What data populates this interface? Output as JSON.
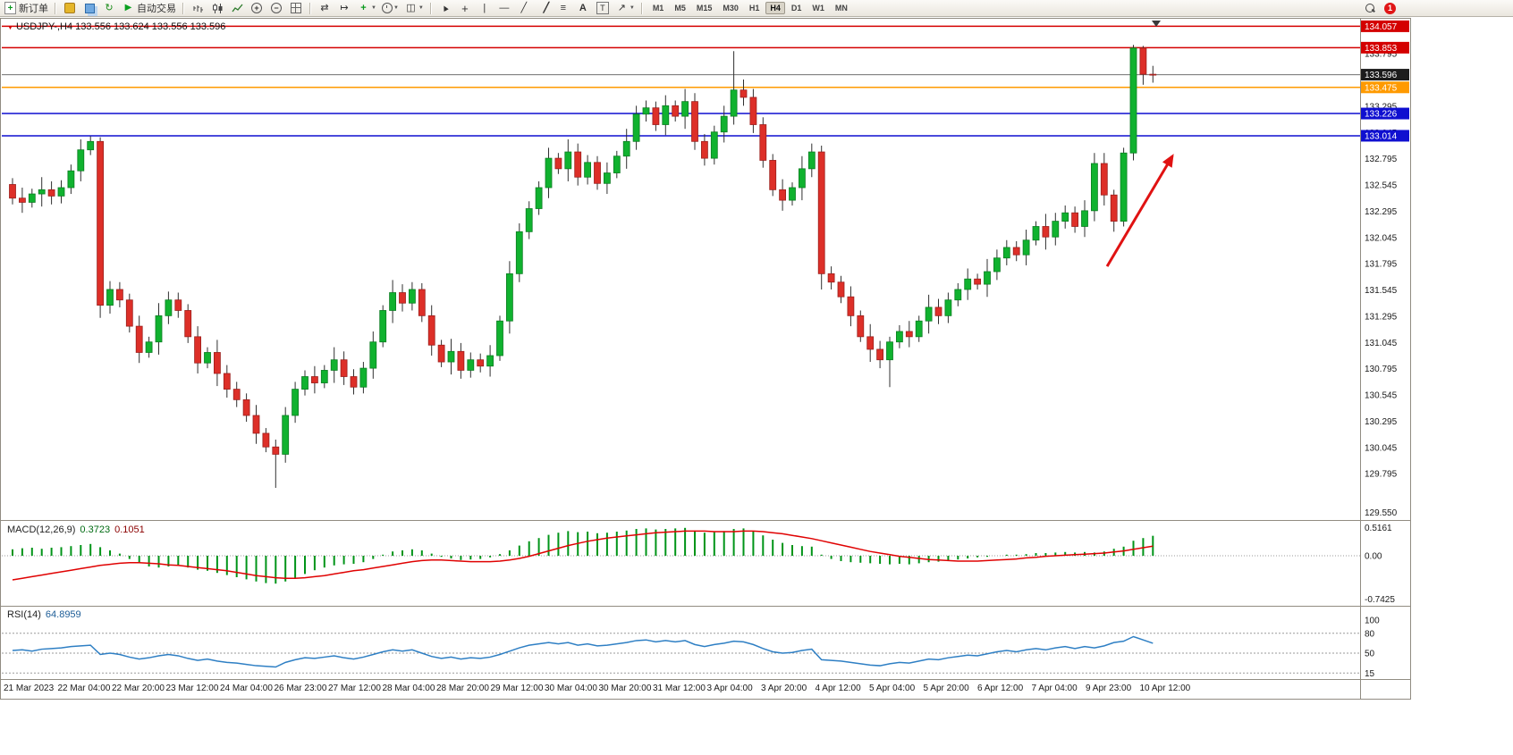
{
  "toolbar": {
    "new_order_label": "新订单",
    "autotrade_label": "自动交易",
    "timeframes": [
      "M1",
      "M5",
      "M15",
      "M30",
      "H1",
      "H4",
      "D1",
      "W1",
      "MN"
    ],
    "active_timeframe": "H4",
    "notification_count": "1",
    "icons": [
      "new-order-icon",
      "hammer-icon",
      "layers-icon",
      "refresh-icon",
      "autotrade-play-icon",
      "bar-chart-icon",
      "candlestick-chart-icon",
      "line-chart-icon",
      "zoom-in-icon",
      "zoom-out-icon",
      "tile-windows-icon",
      "auto-scroll-icon",
      "chart-shift-icon",
      "indicators-icon",
      "periods-icon",
      "templates-icon",
      "cursor-icon",
      "crosshair-icon",
      "vertical-line-icon",
      "horizontal-line-icon",
      "trendline-icon",
      "channel-icon",
      "fibonacci-icon",
      "text-icon",
      "text-label-icon",
      "arrows-icon",
      "search-icon"
    ]
  },
  "chart": {
    "symbol_period": "USDJPY-,H4",
    "ohlc_text": "133.556 133.624 133.556 133.596"
  },
  "chart_data": {
    "type": "candlestick",
    "symbol": "USDJPY-",
    "timeframe": "H4",
    "ohlc_display": {
      "open": "133.556",
      "high": "133.624",
      "low": "133.556",
      "close": "133.596"
    },
    "ylim": [
      129.37,
      134.12
    ],
    "current_price": 133.596,
    "price_axis_labels": [
      "133.795",
      "133.295",
      "133.045",
      "132.795",
      "132.545",
      "132.295",
      "132.045",
      "131.795",
      "131.545",
      "131.295",
      "131.045",
      "130.795",
      "130.545",
      "130.295",
      "130.045",
      "129.795"
    ],
    "price_axis_bottom_label": "129.550",
    "price_badges": [
      {
        "text": "134.057",
        "bg": "#d40000"
      },
      {
        "text": "133.853",
        "bg": "#d40000"
      },
      {
        "text": "133.596",
        "bg": "#1c1c1c"
      },
      {
        "text": "133.475",
        "bg": "#ff9a00"
      },
      {
        "text": "133.226",
        "bg": "#0f0fd0"
      },
      {
        "text": "133.014",
        "bg": "#0f0fd0"
      }
    ],
    "hlines": [
      {
        "price": 134.057,
        "color": "#d40000"
      },
      {
        "price": 133.853,
        "color": "#d40000"
      },
      {
        "price": 133.475,
        "color": "#ff9a00"
      },
      {
        "price": 133.226,
        "color": "#0f0fd0"
      },
      {
        "price": 133.014,
        "color": "#0f0fd0"
      }
    ],
    "x_labels": [
      "21 Mar 2023",
      "22 Mar 04:00",
      "22 Mar 20:00",
      "23 Mar 12:00",
      "24 Mar 04:00",
      "26 Mar 23:00",
      "27 Mar 12:00",
      "28 Mar 04:00",
      "28 Mar 20:00",
      "29 Mar 12:00",
      "30 Mar 04:00",
      "30 Mar 20:00",
      "31 Mar 12:00",
      "3 Apr 04:00",
      "3 Apr 20:00",
      "4 Apr 12:00",
      "5 Apr 04:00",
      "5 Apr 20:00",
      "6 Apr 12:00",
      "7 Apr 04:00",
      "9 Apr 23:00",
      "10 Apr 12:00"
    ],
    "candles": [
      [
        132.55,
        132.61,
        132.36,
        132.42
      ],
      [
        132.42,
        132.52,
        132.28,
        132.38
      ],
      [
        132.38,
        132.51,
        132.33,
        132.46
      ],
      [
        132.46,
        132.62,
        132.34,
        132.5
      ],
      [
        132.5,
        132.58,
        132.36,
        132.44
      ],
      [
        132.44,
        132.59,
        132.37,
        132.52
      ],
      [
        132.52,
        132.74,
        132.46,
        132.68
      ],
      [
        132.68,
        132.98,
        132.58,
        132.88
      ],
      [
        132.88,
        133.01,
        132.83,
        132.96
      ],
      [
        132.96,
        133.0,
        131.28,
        131.4
      ],
      [
        131.4,
        131.63,
        131.32,
        131.55
      ],
      [
        131.55,
        131.62,
        131.38,
        131.45
      ],
      [
        131.45,
        131.51,
        131.14,
        131.2
      ],
      [
        131.2,
        131.3,
        130.85,
        130.95
      ],
      [
        130.95,
        131.1,
        130.9,
        131.05
      ],
      [
        131.05,
        131.42,
        130.93,
        131.3
      ],
      [
        131.3,
        131.53,
        131.22,
        131.45
      ],
      [
        131.45,
        131.52,
        131.28,
        131.35
      ],
      [
        131.35,
        131.41,
        131.04,
        131.1
      ],
      [
        131.1,
        131.2,
        130.75,
        130.85
      ],
      [
        130.85,
        131.0,
        130.8,
        130.95
      ],
      [
        130.95,
        131.07,
        130.63,
        130.75
      ],
      [
        130.75,
        130.83,
        130.52,
        130.6
      ],
      [
        130.6,
        130.67,
        130.43,
        130.5
      ],
      [
        130.5,
        130.56,
        130.29,
        130.35
      ],
      [
        130.35,
        130.45,
        130.08,
        130.18
      ],
      [
        130.18,
        130.23,
        130.0,
        130.05
      ],
      [
        130.05,
        130.12,
        129.66,
        129.98
      ],
      [
        129.98,
        130.43,
        129.9,
        130.35
      ],
      [
        130.35,
        130.67,
        130.28,
        130.6
      ],
      [
        130.6,
        130.78,
        130.54,
        130.72
      ],
      [
        130.72,
        130.82,
        130.56,
        130.66
      ],
      [
        130.66,
        130.83,
        130.61,
        130.78
      ],
      [
        130.78,
        131.0,
        130.66,
        130.88
      ],
      [
        130.88,
        130.96,
        130.64,
        130.72
      ],
      [
        130.72,
        130.79,
        130.55,
        130.62
      ],
      [
        130.62,
        130.86,
        130.56,
        130.8
      ],
      [
        130.8,
        131.15,
        130.7,
        131.05
      ],
      [
        131.05,
        131.4,
        131.0,
        131.35
      ],
      [
        131.35,
        131.64,
        131.23,
        131.52
      ],
      [
        131.52,
        131.6,
        131.34,
        131.42
      ],
      [
        131.42,
        131.62,
        131.35,
        131.55
      ],
      [
        131.55,
        131.61,
        131.24,
        131.3
      ],
      [
        131.3,
        131.4,
        130.92,
        131.02
      ],
      [
        131.02,
        131.07,
        130.81,
        130.86
      ],
      [
        130.86,
        131.08,
        130.74,
        130.96
      ],
      [
        130.96,
        131.04,
        130.7,
        130.78
      ],
      [
        130.78,
        130.95,
        130.71,
        130.88
      ],
      [
        130.88,
        130.94,
        130.76,
        130.82
      ],
      [
        130.82,
        131.02,
        130.72,
        130.92
      ],
      [
        130.92,
        131.3,
        130.87,
        131.25
      ],
      [
        131.25,
        131.82,
        131.13,
        131.7
      ],
      [
        131.7,
        132.18,
        131.62,
        132.1
      ],
      [
        132.1,
        132.39,
        132.03,
        132.32
      ],
      [
        132.32,
        132.58,
        132.26,
        132.52
      ],
      [
        132.52,
        132.9,
        132.42,
        132.8
      ],
      [
        132.8,
        132.85,
        132.65,
        132.7
      ],
      [
        132.7,
        132.98,
        132.58,
        132.86
      ],
      [
        132.86,
        132.94,
        132.54,
        132.62
      ],
      [
        132.62,
        132.83,
        132.55,
        132.76
      ],
      [
        132.76,
        132.82,
        132.5,
        132.56
      ],
      [
        132.56,
        132.76,
        132.46,
        132.66
      ],
      [
        132.66,
        132.87,
        132.61,
        132.82
      ],
      [
        132.82,
        133.08,
        132.7,
        132.96
      ],
      [
        132.96,
        133.3,
        132.88,
        133.22
      ],
      [
        133.22,
        133.35,
        133.15,
        133.28
      ],
      [
        133.28,
        133.34,
        133.06,
        133.12
      ],
      [
        133.12,
        133.4,
        133.02,
        133.3
      ],
      [
        133.3,
        133.35,
        133.15,
        133.2
      ],
      [
        133.2,
        133.46,
        133.08,
        133.34
      ],
      [
        133.34,
        133.42,
        132.88,
        132.96
      ],
      [
        132.96,
        133.03,
        132.73,
        132.8
      ],
      [
        132.8,
        133.11,
        132.74,
        133.05
      ],
      [
        133.05,
        133.3,
        132.95,
        133.2
      ],
      [
        133.2,
        133.82,
        133.12,
        133.45
      ],
      [
        133.45,
        133.55,
        133.3,
        133.38
      ],
      [
        133.38,
        133.46,
        133.04,
        133.12
      ],
      [
        133.12,
        133.19,
        132.71,
        132.78
      ],
      [
        132.78,
        132.84,
        132.44,
        132.5
      ],
      [
        132.5,
        132.6,
        132.3,
        132.4
      ],
      [
        132.4,
        132.57,
        132.35,
        132.52
      ],
      [
        132.52,
        132.82,
        132.4,
        132.7
      ],
      [
        132.7,
        132.94,
        132.62,
        132.86
      ],
      [
        132.86,
        132.92,
        131.55,
        131.7
      ],
      [
        131.7,
        131.77,
        131.55,
        131.62
      ],
      [
        131.62,
        131.68,
        131.42,
        131.48
      ],
      [
        131.48,
        131.58,
        131.2,
        131.3
      ],
      [
        131.3,
        131.35,
        131.05,
        131.1
      ],
      [
        131.1,
        131.22,
        130.86,
        130.98
      ],
      [
        130.98,
        131.06,
        130.8,
        130.88
      ],
      [
        130.88,
        131.1,
        130.62,
        131.05
      ],
      [
        131.05,
        131.21,
        130.99,
        131.15
      ],
      [
        131.15,
        131.25,
        131.0,
        131.1
      ],
      [
        131.1,
        131.3,
        131.05,
        131.25
      ],
      [
        131.25,
        131.5,
        131.13,
        131.38
      ],
      [
        131.38,
        131.46,
        131.22,
        131.3
      ],
      [
        131.3,
        131.52,
        131.23,
        131.45
      ],
      [
        131.45,
        131.61,
        131.39,
        131.55
      ],
      [
        131.55,
        131.75,
        131.45,
        131.65
      ],
      [
        131.65,
        131.7,
        131.55,
        131.6
      ],
      [
        131.6,
        131.84,
        131.48,
        131.72
      ],
      [
        131.72,
        131.93,
        131.64,
        131.85
      ],
      [
        131.85,
        132.02,
        131.78,
        131.95
      ],
      [
        131.95,
        132.01,
        131.82,
        131.88
      ],
      [
        131.88,
        132.12,
        131.78,
        132.02
      ],
      [
        132.02,
        132.2,
        131.97,
        132.15
      ],
      [
        132.15,
        132.27,
        131.93,
        132.05
      ],
      [
        132.05,
        132.28,
        131.97,
        132.2
      ],
      [
        132.2,
        132.35,
        132.13,
        132.28
      ],
      [
        132.28,
        132.34,
        132.09,
        132.15
      ],
      [
        132.15,
        132.4,
        132.05,
        132.3
      ],
      [
        132.3,
        132.85,
        132.2,
        132.75
      ],
      [
        132.75,
        132.85,
        132.35,
        132.45
      ],
      [
        132.45,
        132.5,
        132.1,
        132.2
      ],
      [
        132.2,
        132.9,
        132.15,
        132.85
      ],
      [
        132.85,
        133.88,
        132.78,
        133.85
      ],
      [
        133.85,
        133.87,
        133.5,
        133.6
      ],
      [
        133.6,
        133.68,
        133.52,
        133.596
      ]
    ],
    "indicators": {
      "macd": {
        "label": "MACD(12,26,9)",
        "main_value": "0.3723",
        "signal_value": "0.1051",
        "scale": [
          "0.5161",
          "0.00",
          "-0.7425"
        ],
        "histogram": [
          0.12,
          0.14,
          0.15,
          0.13,
          0.15,
          0.16,
          0.18,
          0.2,
          0.22,
          0.16,
          0.1,
          0.04,
          -0.06,
          -0.14,
          -0.2,
          -0.22,
          -0.2,
          -0.18,
          -0.22,
          -0.26,
          -0.28,
          -0.32,
          -0.36,
          -0.4,
          -0.44,
          -0.48,
          -0.51,
          -0.52,
          -0.48,
          -0.42,
          -0.34,
          -0.27,
          -0.22,
          -0.18,
          -0.16,
          -0.15,
          -0.12,
          -0.06,
          0.02,
          0.08,
          0.1,
          0.12,
          0.1,
          0.04,
          -0.02,
          -0.05,
          -0.08,
          -0.07,
          -0.06,
          -0.03,
          0.03,
          0.1,
          0.19,
          0.27,
          0.33,
          0.39,
          0.43,
          0.46,
          0.44,
          0.45,
          0.42,
          0.43,
          0.45,
          0.47,
          0.5,
          0.51,
          0.49,
          0.5,
          0.51,
          0.52,
          0.47,
          0.43,
          0.44,
          0.46,
          0.5,
          0.51,
          0.46,
          0.38,
          0.3,
          0.24,
          0.2,
          0.18,
          0.17,
          0.02,
          -0.06,
          -0.1,
          -0.12,
          -0.13,
          -0.14,
          -0.15,
          -0.16,
          -0.15,
          -0.16,
          -0.14,
          -0.12,
          -0.11,
          -0.09,
          -0.07,
          -0.05,
          -0.03,
          -0.02,
          0.0,
          0.02,
          0.02,
          0.03,
          0.05,
          0.05,
          0.06,
          0.07,
          0.06,
          0.07,
          0.06,
          0.08,
          0.13,
          0.17,
          0.28,
          0.33,
          0.3723
        ],
        "signal": [
          -0.45,
          -0.42,
          -0.39,
          -0.36,
          -0.33,
          -0.3,
          -0.27,
          -0.24,
          -0.21,
          -0.18,
          -0.16,
          -0.14,
          -0.13,
          -0.13,
          -0.14,
          -0.15,
          -0.17,
          -0.18,
          -0.2,
          -0.22,
          -0.24,
          -0.26,
          -0.28,
          -0.31,
          -0.34,
          -0.37,
          -0.39,
          -0.41,
          -0.42,
          -0.42,
          -0.41,
          -0.39,
          -0.37,
          -0.34,
          -0.31,
          -0.28,
          -0.26,
          -0.23,
          -0.2,
          -0.17,
          -0.14,
          -0.11,
          -0.09,
          -0.08,
          -0.08,
          -0.09,
          -0.1,
          -0.11,
          -0.11,
          -0.11,
          -0.1,
          -0.08,
          -0.05,
          -0.01,
          0.04,
          0.09,
          0.14,
          0.19,
          0.23,
          0.27,
          0.3,
          0.33,
          0.35,
          0.37,
          0.39,
          0.41,
          0.43,
          0.44,
          0.45,
          0.46,
          0.46,
          0.46,
          0.45,
          0.45,
          0.45,
          0.46,
          0.46,
          0.45,
          0.43,
          0.41,
          0.38,
          0.35,
          0.32,
          0.28,
          0.24,
          0.2,
          0.16,
          0.12,
          0.08,
          0.05,
          0.02,
          -0.01,
          -0.03,
          -0.05,
          -0.07,
          -0.08,
          -0.09,
          -0.1,
          -0.1,
          -0.1,
          -0.09,
          -0.08,
          -0.07,
          -0.06,
          -0.04,
          -0.03,
          -0.01,
          0.0,
          0.01,
          0.02,
          0.03,
          0.04,
          0.05,
          0.07,
          0.09,
          0.12,
          0.15,
          0.18
        ]
      },
      "rsi": {
        "label": "RSI(14)",
        "value": "64.8959",
        "scale": [
          "100",
          "80",
          "50",
          "15"
        ],
        "levels": [
          80,
          50,
          20
        ],
        "values": [
          54,
          55,
          53,
          56,
          57,
          58,
          60,
          61,
          62,
          48,
          50,
          48,
          44,
          41,
          43,
          46,
          48,
          46,
          42,
          39,
          41,
          38,
          36,
          35,
          33,
          31,
          30,
          29,
          36,
          40,
          43,
          42,
          44,
          46,
          43,
          41,
          44,
          48,
          52,
          55,
          53,
          55,
          50,
          45,
          42,
          44,
          41,
          43,
          42,
          44,
          48,
          53,
          58,
          62,
          64,
          66,
          64,
          66,
          62,
          64,
          61,
          62,
          64,
          66,
          69,
          70,
          67,
          69,
          67,
          69,
          63,
          60,
          63,
          65,
          68,
          67,
          63,
          57,
          52,
          50,
          51,
          54,
          56,
          40,
          39,
          38,
          36,
          34,
          32,
          31,
          34,
          36,
          35,
          38,
          41,
          40,
          43,
          45,
          47,
          46,
          49,
          52,
          54,
          52,
          55,
          57,
          55,
          58,
          60,
          57,
          60,
          58,
          61,
          66,
          68,
          75,
          70,
          65
        ]
      }
    }
  },
  "annotations": {
    "arrow": {
      "from_bar": 112.3,
      "from_price": 131.77,
      "to_bar": 119,
      "to_price": 132.82,
      "color": "#e01212"
    }
  }
}
